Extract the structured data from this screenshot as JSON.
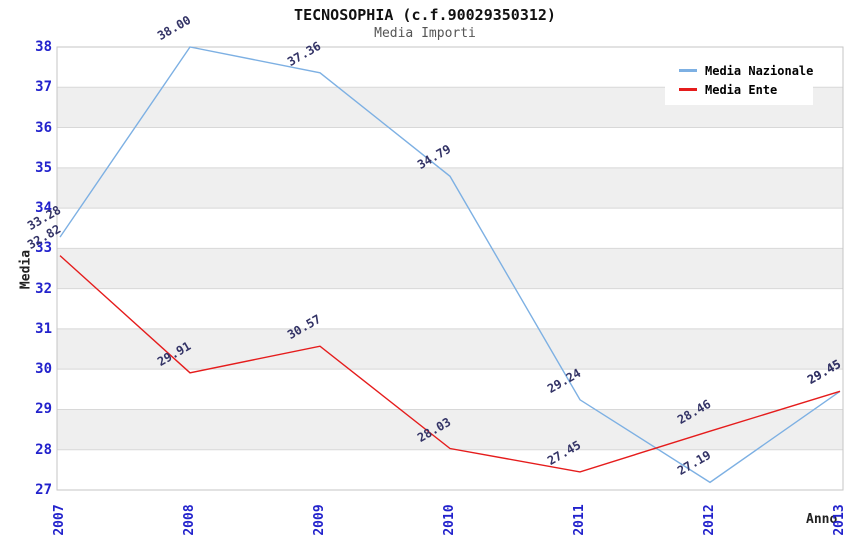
{
  "title": "TECNOSOPHIA (c.f.90029350312)",
  "subtitle": "Media Importi",
  "chart_data": {
    "type": "line",
    "x": [
      "2007",
      "2008",
      "2009",
      "2010",
      "2011",
      "2012",
      "2013"
    ],
    "xlabel": "Anno",
    "ylabel": "Media",
    "ylim": [
      27,
      38
    ],
    "ytick_step": 1,
    "yticks": [
      27,
      28,
      29,
      30,
      31,
      32,
      33,
      34,
      35,
      36,
      37,
      38
    ],
    "grid": true,
    "banded_background": true,
    "legend_position": "top-right",
    "point_labels": true,
    "series": [
      {
        "name": "Media Nazionale",
        "color": "#7db0e3",
        "values": [
          33.28,
          38.0,
          37.36,
          34.79,
          29.24,
          27.19,
          29.45
        ]
      },
      {
        "name": "Media Ente",
        "color": "#e51c1c",
        "values": [
          32.82,
          29.91,
          30.57,
          28.03,
          27.45,
          28.46,
          29.45
        ]
      }
    ]
  },
  "style": {
    "tick_color": "#2222cc",
    "point_label_color": "#333366",
    "band_color": "#efefef",
    "grid_color": "#d8d8d8",
    "border_color": "#c6c6c6",
    "title_color": "#111111",
    "subtitle_color": "#555555"
  }
}
